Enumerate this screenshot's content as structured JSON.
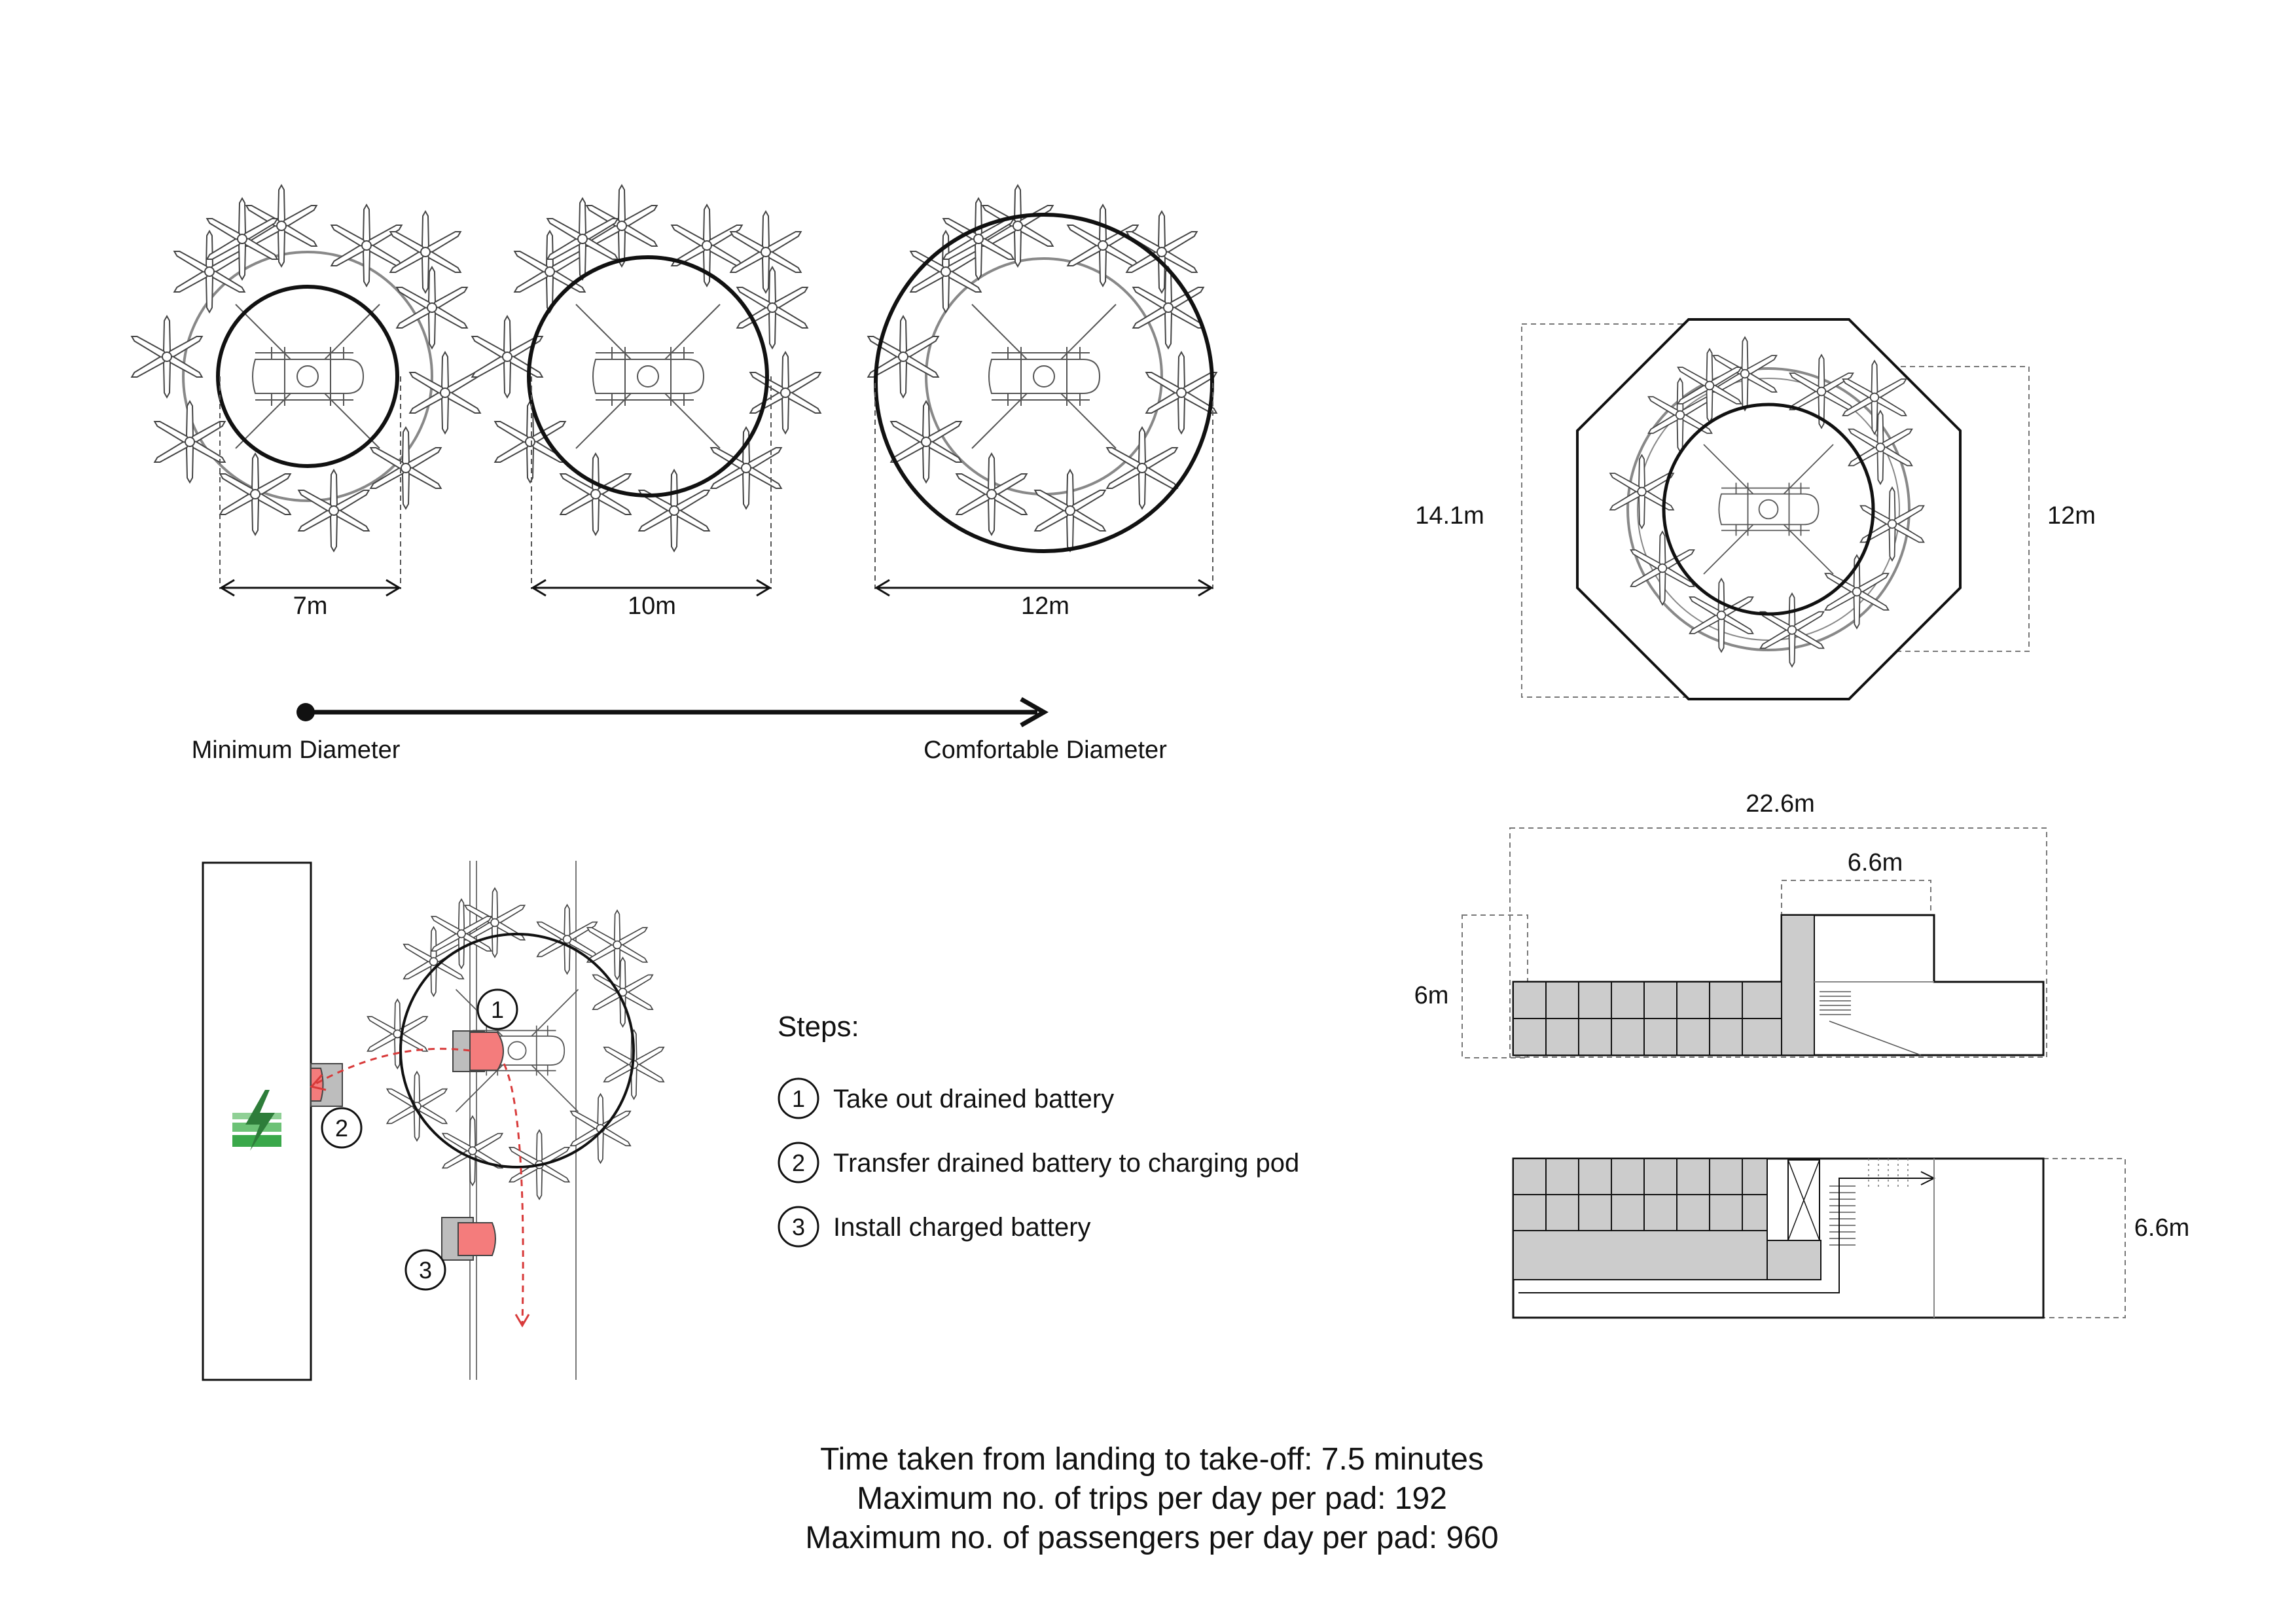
{
  "diameters": {
    "d1": "7m",
    "d2": "10m",
    "d3": "12m",
    "min_label": "Minimum Diameter",
    "comfort_label": "Comfortable Diameter"
  },
  "octagon": {
    "left_dim": "14.1m",
    "right_dim": "12m"
  },
  "section": {
    "top_dim": "22.6m",
    "mid_dim": "6.6m",
    "left_dim": "6m"
  },
  "plan": {
    "right_dim": "6.6m"
  },
  "steps": {
    "title": "Steps:",
    "items": [
      {
        "num": "1",
        "text": "Take out drained battery"
      },
      {
        "num": "2",
        "text": "Transfer drained battery to charging pod"
      },
      {
        "num": "3",
        "text": "Install charged battery"
      }
    ]
  },
  "stats": {
    "line1": "Time taken from landing to take-off: 7.5 minutes",
    "line2": "Maximum no. of trips per day per pad: 192",
    "line3": "Maximum no. of passengers per day per pad: 960"
  },
  "colors": {
    "stroke": "#111111",
    "grey_fill": "#cccccc",
    "battery_red": "#f47c7c",
    "charge_green": "#3aa84a",
    "dashed_red": "#d83a3a"
  },
  "icons": [
    "drone-rotor-icon",
    "lightning-bolt-icon",
    "battery-icon"
  ]
}
